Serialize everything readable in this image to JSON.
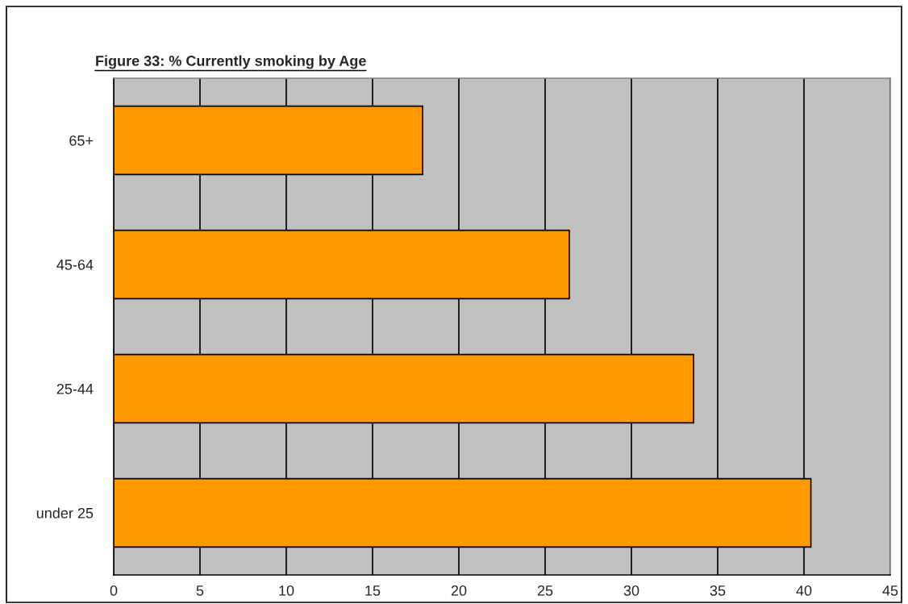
{
  "chart_data": {
    "type": "bar",
    "orientation": "horizontal",
    "title": "Figure 33: % Currently smoking by Age",
    "categories": [
      "65+",
      "45-64",
      "25-44",
      "under 25"
    ],
    "values": [
      17.9,
      26.4,
      33.6,
      40.4
    ],
    "color": "#ff9900",
    "xlim": [
      0,
      45
    ],
    "xticks": [
      0,
      5,
      10,
      15,
      20,
      25,
      30,
      35,
      40,
      45
    ],
    "grid": "x"
  }
}
